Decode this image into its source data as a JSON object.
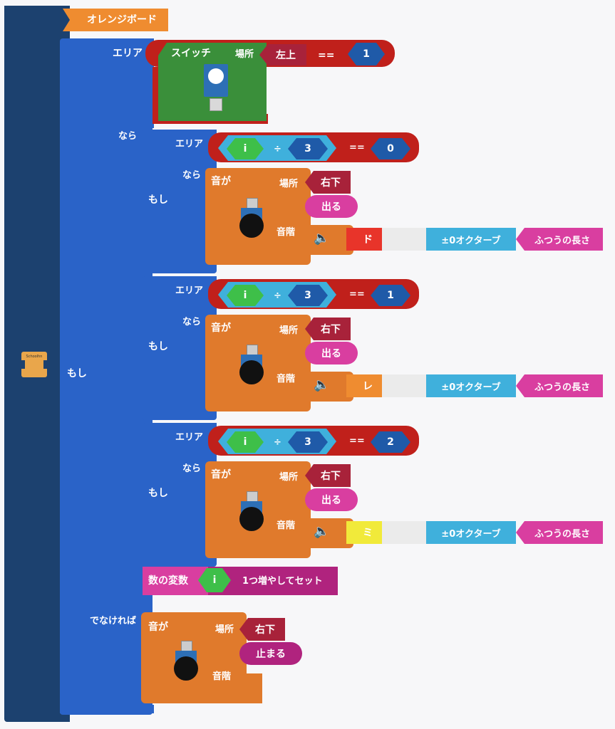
{
  "board": {
    "title": "オレンジボード",
    "badge_text": "Schoolhn"
  },
  "if1": {
    "label_if": "もし",
    "label_area": "エリア",
    "label_then": "なら",
    "label_else": "でなければ",
    "condition": {
      "block": "スイッチ",
      "place_label": "場所",
      "place_value": "左上",
      "op": "==",
      "value": "1"
    }
  },
  "branches": [
    {
      "if_label": "もし",
      "area_label": "エリア",
      "then_label": "なら",
      "var": "i",
      "divide": "÷",
      "divisor": "3",
      "op": "==",
      "value": "0",
      "sound": {
        "head": "音が",
        "place_label": "場所",
        "place_value": "右下",
        "action": "出る",
        "scale_label": "音階",
        "note": "ド",
        "note_color": "#e8342a",
        "octave": "±0オクターブ",
        "length": "ふつうの長さ"
      }
    },
    {
      "if_label": "もし",
      "area_label": "エリア",
      "then_label": "なら",
      "var": "i",
      "divide": "÷",
      "divisor": "3",
      "op": "==",
      "value": "1",
      "sound": {
        "head": "音が",
        "place_label": "場所",
        "place_value": "右下",
        "action": "出る",
        "scale_label": "音階",
        "note": "レ",
        "note_color": "#ef8c30",
        "octave": "±0オクターブ",
        "length": "ふつうの長さ"
      }
    },
    {
      "if_label": "もし",
      "area_label": "エリア",
      "then_label": "なら",
      "var": "i",
      "divide": "÷",
      "divisor": "3",
      "op": "==",
      "value": "2",
      "sound": {
        "head": "音が",
        "place_label": "場所",
        "place_value": "右下",
        "action": "出る",
        "scale_label": "音階",
        "note": "ミ",
        "note_color": "#f1ea3a",
        "octave": "±0オクターブ",
        "length": "ふつうの長さ"
      }
    }
  ],
  "increment": {
    "label": "数の変数",
    "var": "i",
    "action": "1つ増やしてセット"
  },
  "else_sound": {
    "head": "音が",
    "place_label": "場所",
    "place_value": "右下",
    "action": "止まる",
    "scale_label": "音階"
  },
  "colors": {
    "board": "#1c416f",
    "if": "#2a63c8",
    "switch": "#3a8f3a",
    "compare": "#c0201b",
    "sound": "#e07a2c",
    "math": "#3fb0dc",
    "value": "#1f5aa8",
    "var": "#3ebf49",
    "magenta": "#d93ea0",
    "purple": "#b0237e",
    "place": "#a8223a"
  }
}
